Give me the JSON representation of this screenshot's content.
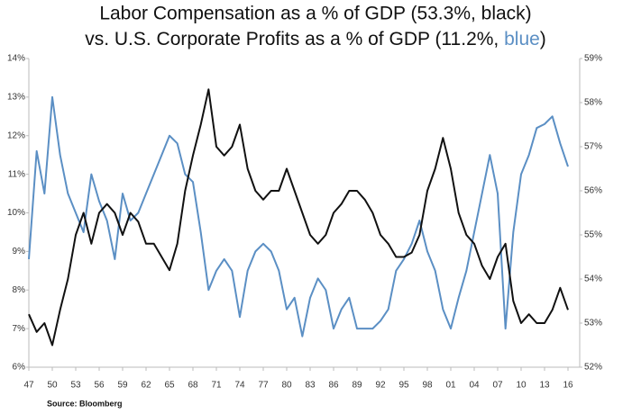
{
  "chart_data": {
    "type": "line",
    "title": [
      "Labor Compensation as a % of GDP (53.3%, black)",
      "vs. U.S. Corporate Profits as a % of GDP (11.2%, ",
      "blue",
      ")"
    ],
    "title_accent_color": "#5b8fc4",
    "source": "Source: Bloomberg",
    "x": [
      1947,
      1948,
      1949,
      1950,
      1951,
      1952,
      1953,
      1954,
      1955,
      1956,
      1957,
      1958,
      1959,
      1960,
      1961,
      1962,
      1963,
      1964,
      1965,
      1966,
      1967,
      1968,
      1969,
      1970,
      1971,
      1972,
      1973,
      1974,
      1975,
      1976,
      1977,
      1978,
      1979,
      1980,
      1981,
      1982,
      1983,
      1984,
      1985,
      1986,
      1987,
      1988,
      1989,
      1990,
      1991,
      1992,
      1993,
      1994,
      1995,
      1996,
      1997,
      1998,
      1999,
      2000,
      2001,
      2002,
      2003,
      2004,
      2005,
      2006,
      2007,
      2008,
      2009,
      2010,
      2011,
      2012,
      2013,
      2014,
      2015,
      2016
    ],
    "series": [
      {
        "name": "Corporate Profits as a % of GDP",
        "color": "#5b8fc4",
        "axis": "y",
        "values": [
          8.8,
          11.6,
          10.5,
          13.0,
          11.5,
          10.5,
          10.0,
          9.5,
          11.0,
          10.3,
          9.8,
          8.8,
          10.5,
          9.8,
          10.0,
          10.5,
          11.0,
          11.5,
          12.0,
          11.8,
          11.0,
          10.8,
          9.5,
          8.0,
          8.5,
          8.8,
          8.5,
          7.3,
          8.5,
          9.0,
          9.2,
          9.0,
          8.5,
          7.5,
          7.8,
          6.8,
          7.8,
          8.3,
          8.0,
          7.0,
          7.5,
          7.8,
          7.0,
          7.0,
          7.0,
          7.2,
          7.5,
          8.5,
          8.8,
          9.2,
          9.8,
          9.0,
          8.5,
          7.5,
          7.0,
          7.8,
          8.5,
          9.5,
          10.5,
          11.5,
          10.5,
          7.0,
          9.5,
          11.0,
          11.5,
          12.2,
          12.3,
          12.5,
          11.8,
          11.2
        ]
      },
      {
        "name": "Labor Compensation as a % of GDP",
        "color": "#111111",
        "axis": "y2",
        "values": [
          53.2,
          52.8,
          53.0,
          52.5,
          53.3,
          54.0,
          55.0,
          55.5,
          54.8,
          55.5,
          55.7,
          55.5,
          55.0,
          55.5,
          55.3,
          54.8,
          54.8,
          54.5,
          54.2,
          54.8,
          56.0,
          56.8,
          57.5,
          58.3,
          57.0,
          56.8,
          57.0,
          57.5,
          56.5,
          56.0,
          55.8,
          56.0,
          56.0,
          56.5,
          56.0,
          55.5,
          55.0,
          54.8,
          55.0,
          55.5,
          55.7,
          56.0,
          56.0,
          55.8,
          55.5,
          55.0,
          54.8,
          54.5,
          54.5,
          54.6,
          55.0,
          56.0,
          56.5,
          57.2,
          56.5,
          55.5,
          55.0,
          54.8,
          54.3,
          54.0,
          54.5,
          54.8,
          53.5,
          53.0,
          53.2,
          53.0,
          53.0,
          53.3,
          53.8,
          53.3
        ]
      }
    ],
    "xlim": [
      1947,
      2017.5
    ],
    "xticks": [
      {
        "value": 1947,
        "label": "47"
      },
      {
        "value": 1950,
        "label": "50"
      },
      {
        "value": 1953,
        "label": "53"
      },
      {
        "value": 1956,
        "label": "56"
      },
      {
        "value": 1959,
        "label": "59"
      },
      {
        "value": 1962,
        "label": "62"
      },
      {
        "value": 1965,
        "label": "65"
      },
      {
        "value": 1968,
        "label": "68"
      },
      {
        "value": 1971,
        "label": "71"
      },
      {
        "value": 1974,
        "label": "74"
      },
      {
        "value": 1977,
        "label": "77"
      },
      {
        "value": 1980,
        "label": "80"
      },
      {
        "value": 1983,
        "label": "83"
      },
      {
        "value": 1986,
        "label": "86"
      },
      {
        "value": 1989,
        "label": "89"
      },
      {
        "value": 1992,
        "label": "92"
      },
      {
        "value": 1995,
        "label": "95"
      },
      {
        "value": 1998,
        "label": "98"
      },
      {
        "value": 2001,
        "label": "01"
      },
      {
        "value": 2004,
        "label": "04"
      },
      {
        "value": 2007,
        "label": "07"
      },
      {
        "value": 2010,
        "label": "10"
      },
      {
        "value": 2013,
        "label": "13"
      },
      {
        "value": 2016,
        "label": "16"
      }
    ],
    "ylim": [
      6,
      14
    ],
    "yticks": [
      {
        "value": 6,
        "label": "6%"
      },
      {
        "value": 7,
        "label": "7%"
      },
      {
        "value": 8,
        "label": "8%"
      },
      {
        "value": 9,
        "label": "9%"
      },
      {
        "value": 10,
        "label": "10%"
      },
      {
        "value": 11,
        "label": "11%"
      },
      {
        "value": 12,
        "label": "12%"
      },
      {
        "value": 13,
        "label": "13%"
      },
      {
        "value": 14,
        "label": "14%"
      }
    ],
    "y2lim": [
      52,
      59
    ],
    "y2ticks": [
      {
        "value": 52,
        "label": "52%"
      },
      {
        "value": 53,
        "label": "53%"
      },
      {
        "value": 54,
        "label": "54%"
      },
      {
        "value": 55,
        "label": "55%"
      },
      {
        "value": 56,
        "label": "56%"
      },
      {
        "value": 57,
        "label": "57%"
      },
      {
        "value": 58,
        "label": "58%"
      },
      {
        "value": 59,
        "label": "59%"
      }
    ],
    "grid": false
  }
}
